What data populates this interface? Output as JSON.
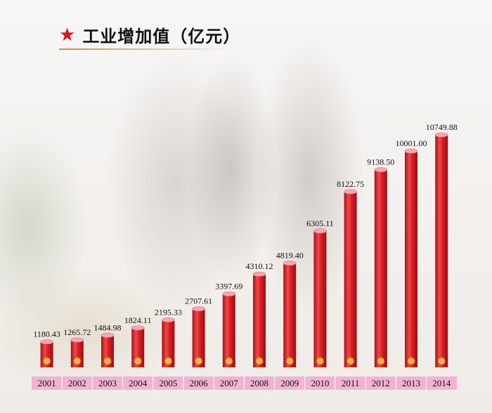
{
  "header": {
    "star_icon": "star-icon",
    "title": "工业增加值（亿元）"
  },
  "colors": {
    "bar": "#d71d22",
    "bar_highlight": "#f05a55",
    "bar_cap": "#f4a6b2",
    "axis_band": "#f2b3d3",
    "star": "#d8161c"
  },
  "chart_data": {
    "type": "bar",
    "title": "工业增加值（亿元）",
    "categories": [
      "2001",
      "2002",
      "2003",
      "2004",
      "2005",
      "2006",
      "2007",
      "2008",
      "2009",
      "2010",
      "2011",
      "2012",
      "2013",
      "2014"
    ],
    "values": [
      1180.43,
      1265.72,
      1484.98,
      1824.11,
      2195.33,
      2707.61,
      3397.69,
      4310.12,
      4819.4,
      6305.11,
      8122.75,
      9138.5,
      10001.0,
      10749.88
    ],
    "value_labels": [
      "1180.43",
      "1265.72",
      "1484.98",
      "1824.11",
      "2195.33",
      "2707.61",
      "3397.69",
      "4310.12",
      "4819.40",
      "6305.11",
      "8122.75",
      "9138.50",
      "10001.00",
      "10749.88"
    ],
    "xlabel": "",
    "ylabel": "",
    "grid": false,
    "legend": "none"
  }
}
